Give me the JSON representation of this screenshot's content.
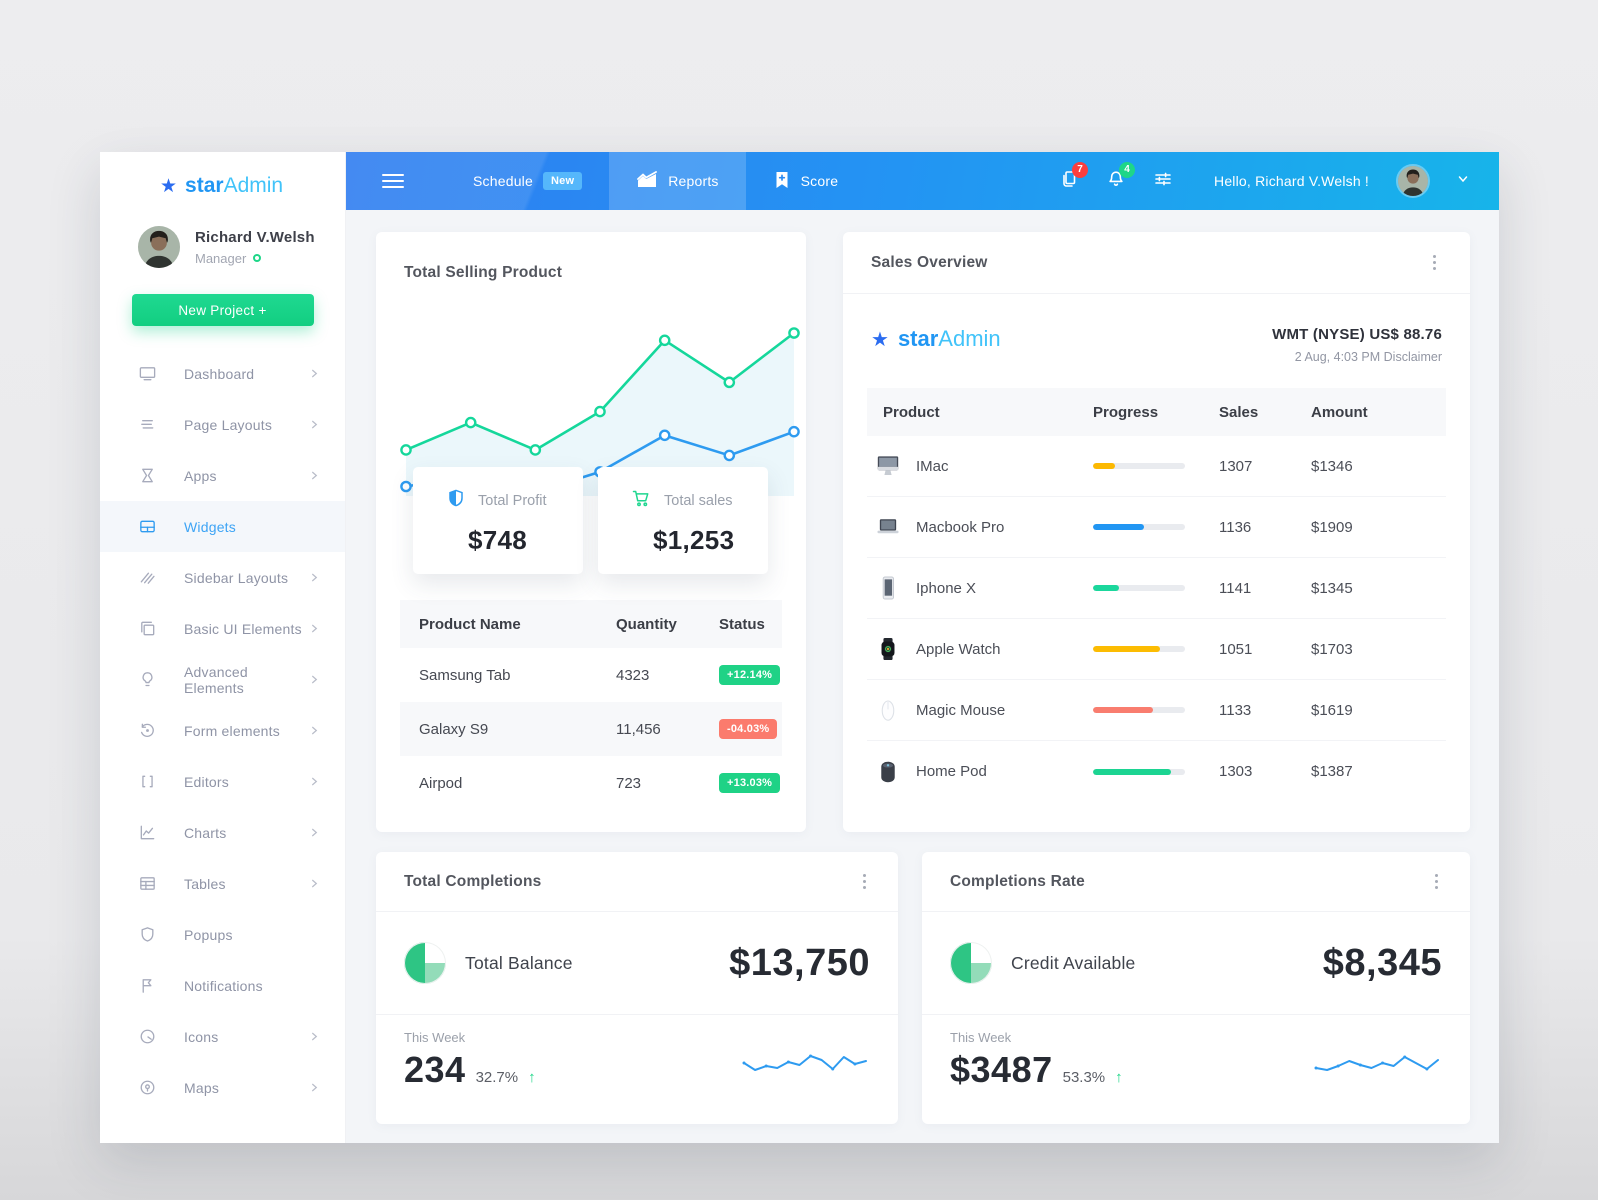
{
  "sidebar": {
    "brand": {
      "star": "★",
      "bold": "star",
      "light": "Admin"
    },
    "profile": {
      "name": "Richard V.Welsh",
      "role": "Manager"
    },
    "new_project": "New Project +",
    "items": [
      {
        "label": "Dashboard",
        "icon": "dashboard",
        "chevron": true
      },
      {
        "label": "Page Layouts",
        "icon": "layouts",
        "chevron": true
      },
      {
        "label": "Apps",
        "icon": "hourglass",
        "chevron": true
      },
      {
        "label": "Widgets",
        "icon": "widgets",
        "chevron": false,
        "active": true
      },
      {
        "label": "Sidebar Layouts",
        "icon": "hatch",
        "chevron": true
      },
      {
        "label": "Basic UI Elements",
        "icon": "copy",
        "chevron": true
      },
      {
        "label": "Advanced Elements",
        "icon": "bulb",
        "chevron": true
      },
      {
        "label": "Form elements",
        "icon": "history",
        "chevron": true
      },
      {
        "label": "Editors",
        "icon": "brackets",
        "chevron": true
      },
      {
        "label": "Charts",
        "icon": "chart",
        "chevron": true
      },
      {
        "label": "Tables",
        "icon": "table",
        "chevron": true
      },
      {
        "label": "Popups",
        "icon": "shield",
        "chevron": false
      },
      {
        "label": "Notifications",
        "icon": "flag",
        "chevron": false
      },
      {
        "label": "Icons",
        "icon": "disc",
        "chevron": true
      },
      {
        "label": "Maps",
        "icon": "pin",
        "chevron": true
      }
    ]
  },
  "navbar": {
    "tabs": [
      {
        "label": "Schedule",
        "badge": "New"
      },
      {
        "label": "Reports",
        "icon": "reports",
        "active": true
      },
      {
        "label": "Score",
        "icon": "score"
      }
    ],
    "docs_badge": "7",
    "alerts_badge": "4",
    "greeting": "Hello, Richard V.Welsh !"
  },
  "selling": {
    "title": "Total Selling Product",
    "stats": [
      {
        "icon": "shield-blue",
        "label": "Total Profit",
        "value": "$748"
      },
      {
        "icon": "cart-green",
        "label": "Total sales",
        "value": "$1,253"
      }
    ],
    "columns": [
      "Product Name",
      "Quantity",
      "Status"
    ],
    "rows": [
      {
        "name": "Samsung Tab",
        "qty": "4323",
        "change": "+12.14%"
      },
      {
        "name": "Galaxy S9",
        "qty": "11,456",
        "change": "-04.03%"
      },
      {
        "name": "Airpod",
        "qty": "723",
        "change": "+13.03%"
      }
    ]
  },
  "sales_overview": {
    "title": "Sales Overview",
    "quote_line1": "WMT (NYSE) US$ 88.76",
    "quote_line2": "2 Aug, 4:03 PM Disclaimer",
    "columns": [
      "Product",
      "Progress",
      "Sales",
      "Amount"
    ],
    "rows": [
      {
        "product": "IMac",
        "image": "imac",
        "progress": 24,
        "bar_color": "#fcb902",
        "sales": "1307",
        "amount": "$1346"
      },
      {
        "product": "Macbook Pro",
        "image": "macbook",
        "progress": 55,
        "bar_color": "#2196f3",
        "sales": "1136",
        "amount": "$1909"
      },
      {
        "product": "Iphone X",
        "image": "iphone",
        "progress": 28,
        "bar_color": "#1bd79c",
        "sales": "1141",
        "amount": "$1345"
      },
      {
        "product": "Apple Watch",
        "image": "watch",
        "progress": 73,
        "bar_color": "#fcbc02",
        "sales": "1051",
        "amount": "$1703"
      },
      {
        "product": "Magic Mouse",
        "image": "mouse",
        "progress": 65,
        "bar_color": "#f97d6f",
        "sales": "1133",
        "amount": "$1619"
      },
      {
        "product": "Home Pod",
        "image": "homepod",
        "progress": 85,
        "bar_color": "#1cd492",
        "sales": "1303",
        "amount": "$1387"
      }
    ]
  },
  "total_completions": {
    "title": "Total Completions",
    "row_label": "Total Balance",
    "row_value": "$13,750",
    "week_label": "This Week",
    "week_value": "234",
    "week_change": "32.7%",
    "spark": [
      40,
      26,
      34,
      30,
      42,
      36,
      54,
      46,
      28,
      52,
      38,
      44
    ]
  },
  "completions_rate": {
    "title": "Completions Rate",
    "row_label": "Credit Available",
    "row_value": "$8,345",
    "week_label": "This Week",
    "week_value": "$3487",
    "week_change": "53.3%",
    "spark": [
      30,
      26,
      34,
      44,
      36,
      30,
      40,
      34,
      52,
      40,
      28,
      46
    ]
  },
  "chart_data": {
    "type": "line",
    "title": "Total Selling Product",
    "x": [
      1,
      2,
      3,
      4,
      5,
      6,
      7
    ],
    "series": [
      {
        "name": "sales",
        "color": "#15d79b",
        "area": true,
        "values": [
          24,
          39,
          24,
          45,
          84,
          61,
          88
        ]
      },
      {
        "name": "profit",
        "color": "#2e9bf0",
        "area": false,
        "values": [
          4,
          10,
          1,
          12,
          32,
          21,
          34
        ]
      }
    ],
    "ylim": [
      0,
      100
    ],
    "grid": false,
    "legend": "none"
  }
}
